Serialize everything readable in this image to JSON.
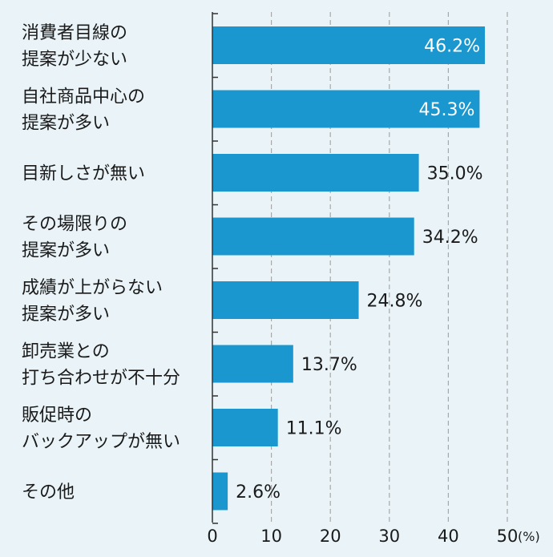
{
  "colors": {
    "bar": "#1a97cf",
    "background": "#eaf4f8",
    "grid": "#a8a8a8",
    "axis": "#333333",
    "label_inside": "#ffffff",
    "label_outside": "#1a1a1a"
  },
  "chart_data": {
    "type": "bar",
    "orientation": "horizontal",
    "categories": [
      [
        "消費者目線の",
        "提案が少ない"
      ],
      [
        "自社商品中心の",
        "提案が多い"
      ],
      [
        "目新しさが無い"
      ],
      [
        "その場限りの",
        "提案が多い"
      ],
      [
        "成績が上がらない",
        "提案が多い"
      ],
      [
        "卸売業との",
        "打ち合わせが不十分"
      ],
      [
        "販促時の",
        "バックアップが無い"
      ],
      [
        "その他"
      ]
    ],
    "values": [
      46.2,
      45.3,
      35.0,
      34.2,
      24.8,
      13.7,
      11.1,
      2.6
    ],
    "value_labels": [
      "46.2%",
      "45.3%",
      "35.0%",
      "34.2%",
      "24.8%",
      "13.7%",
      "11.1%",
      "2.6%"
    ],
    "xlim": [
      0,
      50
    ],
    "xticks": [
      0,
      10,
      20,
      30,
      40,
      50
    ],
    "x_unit": "(%)",
    "grid": "vertical-dashed",
    "legend": "none"
  }
}
